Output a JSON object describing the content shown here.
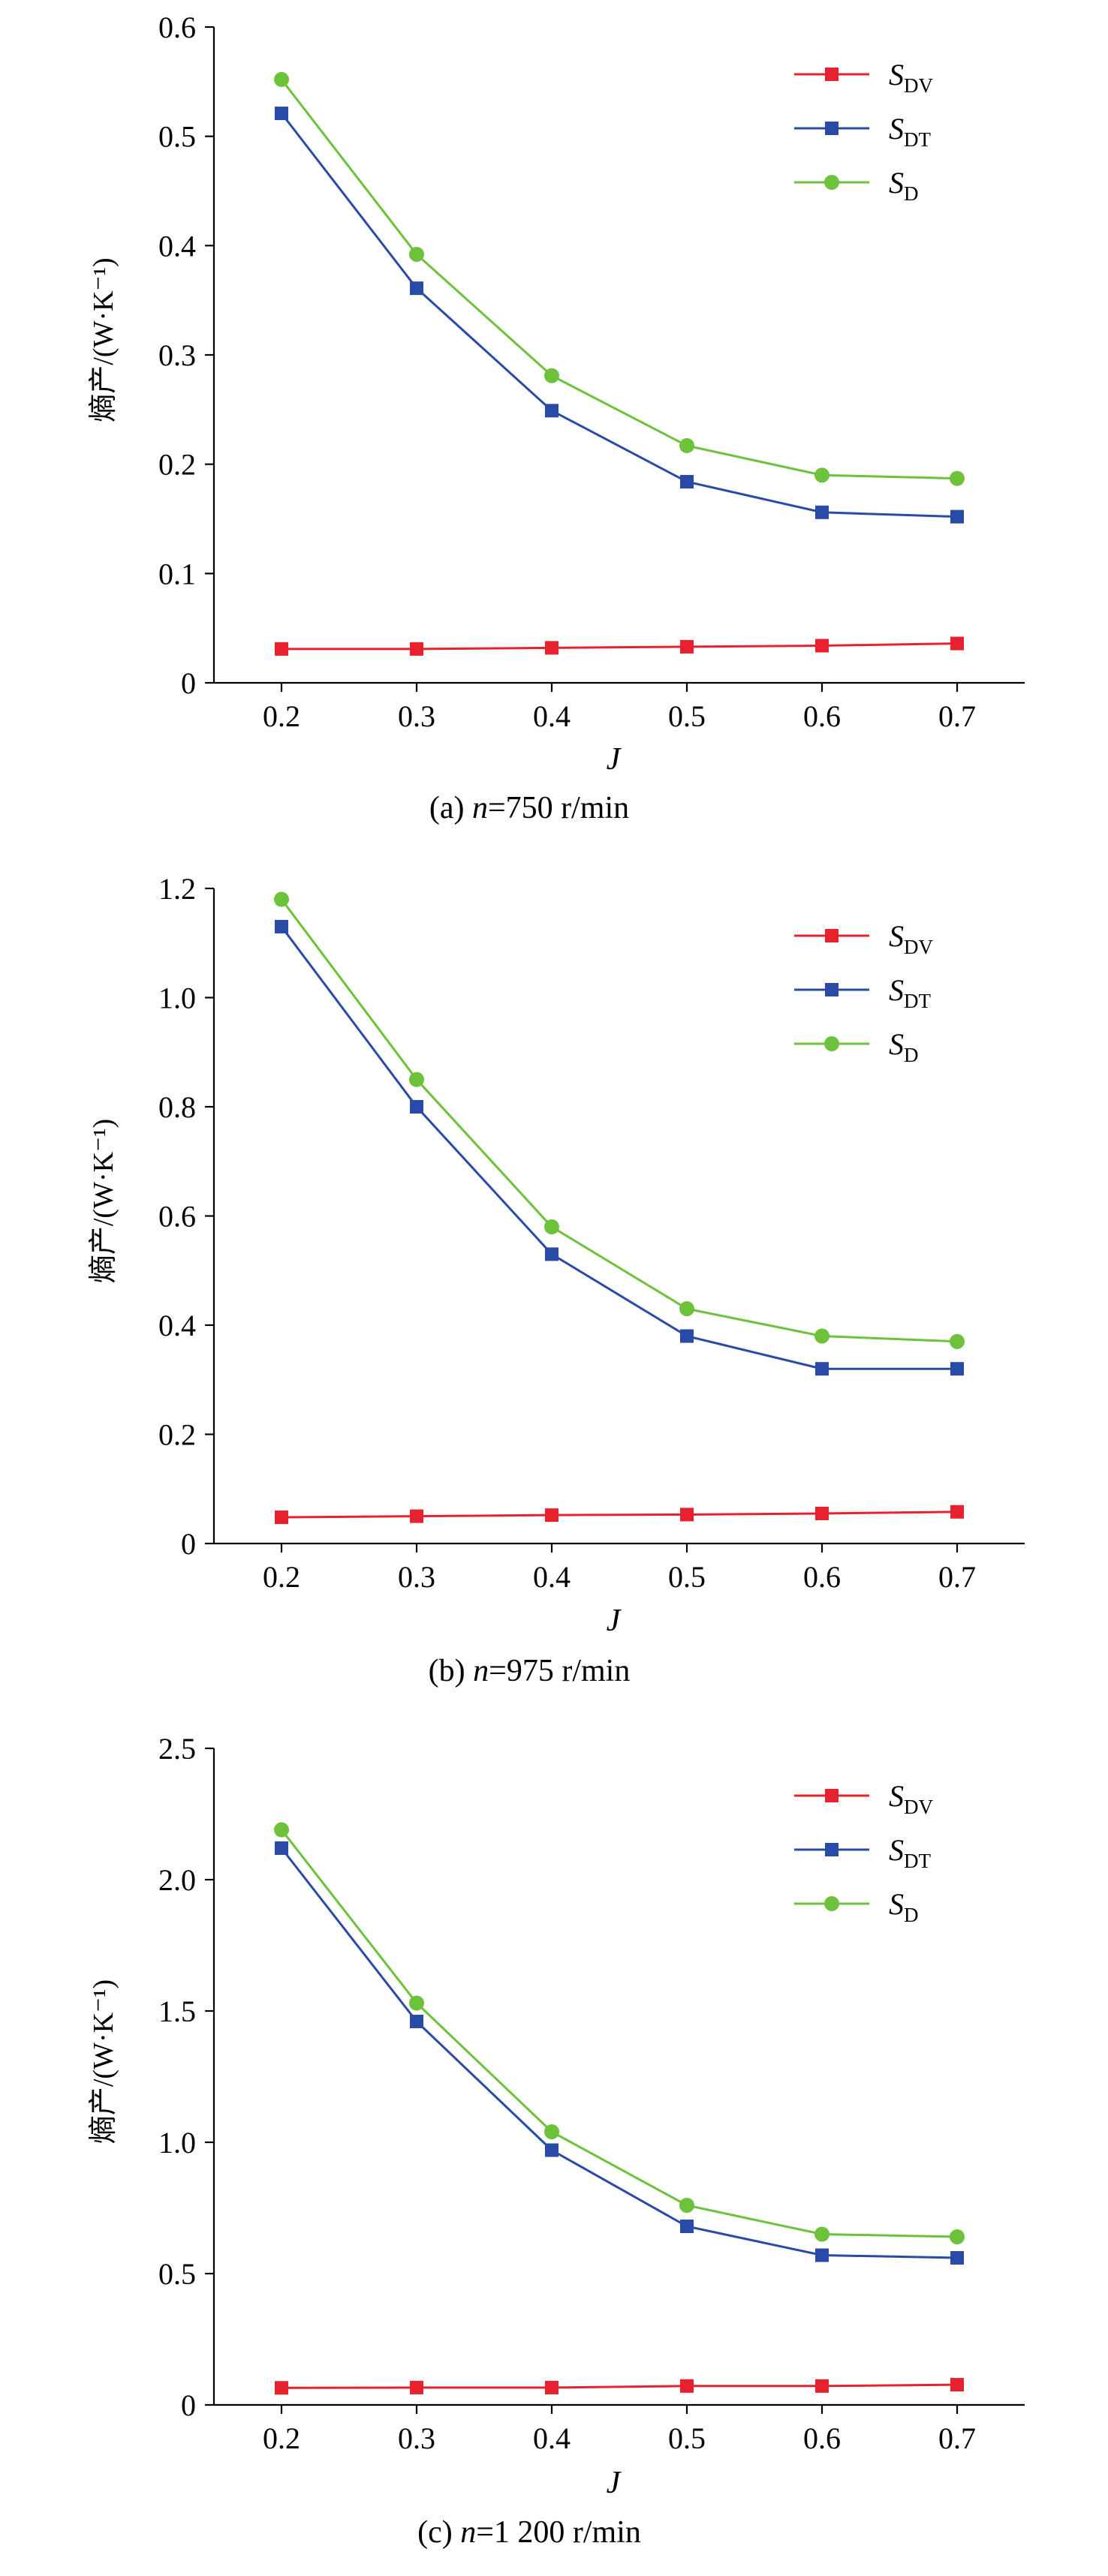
{
  "colors": {
    "S_DV": "#e8212e",
    "S_DT": "#2a4aa8",
    "S_D": "#6cc23a"
  },
  "chart_data": [
    {
      "type": "line",
      "caption_prefix": "(a) ",
      "caption_var": "n",
      "caption_rest": "=750 r/min",
      "xlabel": "J",
      "ylabel": "熵产/(W·K⁻¹)",
      "x": [
        0.2,
        0.3,
        0.4,
        0.5,
        0.6,
        0.7
      ],
      "x_ticks": [
        "0.2",
        "0.3",
        "0.4",
        "0.5",
        "0.6",
        "0.7"
      ],
      "xlim": [
        0.15,
        0.75
      ],
      "ylim": [
        0,
        0.6
      ],
      "y_ticks": [
        "0",
        "0.1",
        "0.2",
        "0.3",
        "0.4",
        "0.5",
        "0.6"
      ],
      "legend_position": "top-right",
      "series": [
        {
          "name": "S_DV",
          "name_main": "S",
          "name_sub": "DV",
          "marker": "square",
          "values": [
            0.031,
            0.031,
            0.032,
            0.033,
            0.034,
            0.036
          ]
        },
        {
          "name": "S_DT",
          "name_main": "S",
          "name_sub": "DT",
          "marker": "square",
          "values": [
            0.521,
            0.361,
            0.249,
            0.184,
            0.156,
            0.152
          ]
        },
        {
          "name": "S_D",
          "name_main": "S",
          "name_sub": "D",
          "marker": "circle",
          "values": [
            0.552,
            0.392,
            0.281,
            0.217,
            0.19,
            0.187
          ]
        }
      ]
    },
    {
      "type": "line",
      "caption_prefix": "(b) ",
      "caption_var": "n",
      "caption_rest": "=975 r/min",
      "xlabel": "J",
      "ylabel": "熵产/(W·K⁻¹)",
      "x": [
        0.2,
        0.3,
        0.4,
        0.5,
        0.6,
        0.7
      ],
      "x_ticks": [
        "0.2",
        "0.3",
        "0.4",
        "0.5",
        "0.6",
        "0.7"
      ],
      "xlim": [
        0.15,
        0.75
      ],
      "ylim": [
        0,
        1.2
      ],
      "y_ticks": [
        "0",
        "0.2",
        "0.4",
        "0.6",
        "0.8",
        "1.0",
        "1.2"
      ],
      "legend_position": "top-right",
      "series": [
        {
          "name": "S_DV",
          "name_main": "S",
          "name_sub": "DV",
          "marker": "square",
          "values": [
            0.048,
            0.05,
            0.052,
            0.053,
            0.055,
            0.058
          ]
        },
        {
          "name": "S_DT",
          "name_main": "S",
          "name_sub": "DT",
          "marker": "square",
          "values": [
            1.13,
            0.8,
            0.53,
            0.38,
            0.32,
            0.32
          ]
        },
        {
          "name": "S_D",
          "name_main": "S",
          "name_sub": "D",
          "marker": "circle",
          "values": [
            1.18,
            0.85,
            0.58,
            0.43,
            0.38,
            0.37
          ]
        }
      ]
    },
    {
      "type": "line",
      "caption_prefix": "(c) ",
      "caption_var": "n",
      "caption_rest": "=1 200 r/min",
      "xlabel": "J",
      "ylabel": "熵产/(W·K⁻¹)",
      "x": [
        0.2,
        0.3,
        0.4,
        0.5,
        0.6,
        0.7
      ],
      "x_ticks": [
        "0.2",
        "0.3",
        "0.4",
        "0.5",
        "0.6",
        "0.7"
      ],
      "xlim": [
        0.15,
        0.75
      ],
      "ylim": [
        0,
        2.5
      ],
      "y_ticks": [
        "0",
        "0.5",
        "1.0",
        "1.5",
        "2.0",
        "2.5"
      ],
      "legend_position": "top-right",
      "series": [
        {
          "name": "S_DV",
          "name_main": "S",
          "name_sub": "DV",
          "marker": "square",
          "values": [
            0.065,
            0.066,
            0.066,
            0.072,
            0.072,
            0.077
          ]
        },
        {
          "name": "S_DT",
          "name_main": "S",
          "name_sub": "DT",
          "marker": "square",
          "values": [
            2.12,
            1.46,
            0.97,
            0.68,
            0.57,
            0.56
          ]
        },
        {
          "name": "S_D",
          "name_main": "S",
          "name_sub": "D",
          "marker": "circle",
          "values": [
            2.19,
            1.53,
            1.04,
            0.76,
            0.65,
            0.64
          ]
        }
      ]
    }
  ]
}
